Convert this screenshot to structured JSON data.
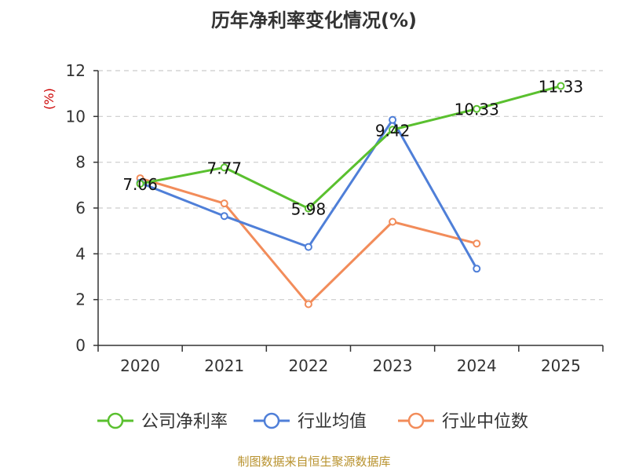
{
  "chart_data": {
    "type": "line",
    "title": "历年净利率变化情况(%)",
    "unit_label": "(%)",
    "categories": [
      "2020",
      "2021",
      "2022",
      "2023",
      "2024",
      "2025"
    ],
    "ylim": [
      0,
      12
    ],
    "yticks": [
      0,
      2,
      4,
      6,
      8,
      10,
      12
    ],
    "grid": true,
    "legend_position": "bottom",
    "series": [
      {
        "name": "公司净利率",
        "color": "#5ac02f",
        "values": [
          7.06,
          7.77,
          5.98,
          9.42,
          10.33,
          11.33
        ],
        "labels": [
          "7.06",
          "7.77",
          "5.98",
          "9.42",
          "10.33",
          "11.33"
        ]
      },
      {
        "name": "行业均值",
        "color": "#4f7fd8",
        "values": [
          7.1,
          5.65,
          4.3,
          9.85,
          3.35,
          null
        ]
      },
      {
        "name": "行业中位数",
        "color": "#f28c5a",
        "values": [
          7.3,
          6.2,
          1.8,
          5.4,
          4.45,
          null
        ]
      }
    ],
    "source": "制图数据来自恒生聚源数据库"
  }
}
